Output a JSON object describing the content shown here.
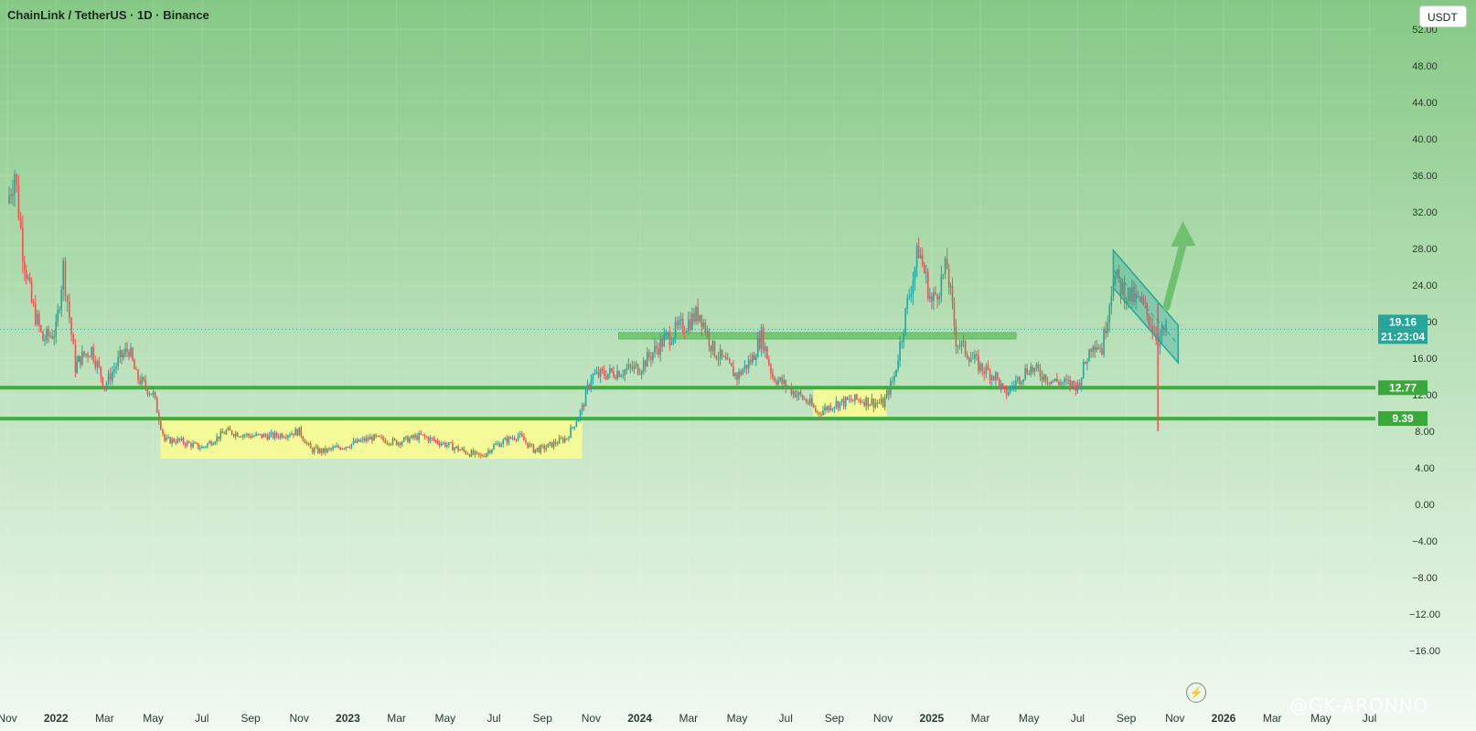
{
  "header": {
    "title": "ChainLink / TetherUS · 1D · Binance",
    "currency": "USDT"
  },
  "watermark": "@GK-ARONNO",
  "chart_data": {
    "type": "candlestick",
    "y_ticks": [
      "52.00",
      "48.00",
      "44.00",
      "40.00",
      "36.00",
      "32.00",
      "28.00",
      "24.00",
      "20.00",
      "16.00",
      "12.00",
      "8.00",
      "4.00",
      "0.00",
      "−4.00",
      "−8.00",
      "−12.00",
      "−16.00"
    ],
    "y_tick_values": [
      52,
      48,
      44,
      40,
      36,
      32,
      28,
      24,
      20,
      16,
      12,
      8,
      4,
      0,
      -4,
      -8,
      -12,
      -16
    ],
    "x_ticks": [
      "Nov",
      "2022",
      "Mar",
      "May",
      "Jul",
      "Sep",
      "Nov",
      "2023",
      "Mar",
      "May",
      "Jul",
      "Sep",
      "Nov",
      "2024",
      "Mar",
      "May",
      "Jul",
      "Sep",
      "Nov",
      "2025",
      "Mar",
      "May",
      "Jul",
      "Sep",
      "Nov",
      "2026",
      "Mar",
      "May",
      "Jul"
    ],
    "x_tick_dates": [
      "2021-11",
      "2022-01",
      "2022-03",
      "2022-05",
      "2022-07",
      "2022-09",
      "2022-11",
      "2023-01",
      "2023-03",
      "2023-05",
      "2023-07",
      "2023-09",
      "2023-11",
      "2024-01",
      "2024-03",
      "2024-05",
      "2024-07",
      "2024-09",
      "2024-11",
      "2025-01",
      "2025-03",
      "2025-05",
      "2025-07",
      "2025-09",
      "2025-11",
      "2026-01",
      "2026-03",
      "2026-05",
      "2026-07"
    ],
    "ylim": [
      -16,
      52
    ],
    "price_path": [
      [
        "2021-11",
        33
      ],
      [
        "2021-11-10",
        36.5
      ],
      [
        "2021-11-20",
        28
      ],
      [
        "2021-12",
        22
      ],
      [
        "2021-12-15",
        18
      ],
      [
        "2022-01",
        19
      ],
      [
        "2022-01-10",
        26
      ],
      [
        "2022-01-25",
        15
      ],
      [
        "2022-02",
        16
      ],
      [
        "2022-02-15",
        17
      ],
      [
        "2022-03",
        13
      ],
      [
        "2022-03-20",
        16
      ],
      [
        "2022-04",
        17
      ],
      [
        "2022-04-10",
        14
      ],
      [
        "2022-05",
        12
      ],
      [
        "2022-05-15",
        7
      ],
      [
        "2022-06",
        7
      ],
      [
        "2022-06-20",
        6.5
      ],
      [
        "2022-07",
        6.2
      ],
      [
        "2022-08",
        8
      ],
      [
        "2022-09",
        7.5
      ],
      [
        "2022-10",
        7.5
      ],
      [
        "2022-11",
        8
      ],
      [
        "2022-11-15",
        6
      ],
      [
        "2022-12",
        5.8
      ],
      [
        "2023-01",
        6.5
      ],
      [
        "2023-02",
        7.3
      ],
      [
        "2023-03",
        6.8
      ],
      [
        "2023-04",
        7.5
      ],
      [
        "2023-05",
        6.6
      ],
      [
        "2023-06",
        5.6
      ],
      [
        "2023-06-15",
        5.2
      ],
      [
        "2023-07",
        6.4
      ],
      [
        "2023-08",
        7.6
      ],
      [
        "2023-08-20",
        6
      ],
      [
        "2023-09",
        6.1
      ],
      [
        "2023-10",
        7.3
      ],
      [
        "2023-10-20",
        10.5
      ],
      [
        "2023-11",
        14
      ],
      [
        "2023-12",
        14.5
      ],
      [
        "2024-01",
        15
      ],
      [
        "2024-02",
        18
      ],
      [
        "2024-03",
        20
      ],
      [
        "2024-03-15",
        21
      ],
      [
        "2024-04",
        17
      ],
      [
        "2024-05",
        14
      ],
      [
        "2024-05-20",
        16
      ],
      [
        "2024-06",
        18.5
      ],
      [
        "2024-06-15",
        14
      ],
      [
        "2024-07",
        13
      ],
      [
        "2024-08",
        11
      ],
      [
        "2024-08-10",
        10
      ],
      [
        "2024-09",
        11
      ],
      [
        "2024-10",
        11.5
      ],
      [
        "2024-11",
        11
      ],
      [
        "2024-11-15",
        14
      ],
      [
        "2024-12",
        22
      ],
      [
        "2024-12-15",
        28
      ],
      [
        "2025-01",
        22
      ],
      [
        "2025-01-20",
        26
      ],
      [
        "2025-02",
        18
      ],
      [
        "2025-03",
        15
      ],
      [
        "2025-03-20",
        14
      ],
      [
        "2025-04",
        12
      ],
      [
        "2025-05",
        15
      ],
      [
        "2025-06",
        13.5
      ],
      [
        "2025-07",
        13
      ],
      [
        "2025-07-20",
        18
      ],
      [
        "2025-08",
        17
      ],
      [
        "2025-08-15",
        25
      ],
      [
        "2025-09",
        23
      ],
      [
        "2025-09-20",
        22
      ],
      [
        "2025-10",
        20
      ],
      [
        "2025-10-10",
        18
      ],
      [
        "2025-10-20",
        19.2
      ]
    ],
    "flash_wick": {
      "date": "2025-10-10",
      "low": 8
    },
    "annotations": {
      "support_lines": [
        12.77,
        9.39
      ],
      "current_price": 19.16,
      "countdown": "21:23:04",
      "labels": [
        "19.16",
        "21:23:04",
        "12.77",
        "9.39"
      ]
    },
    "colors": {
      "bg_top": "#86c986",
      "bg_bottom": "#f2faf2",
      "up": "#26a69a",
      "down": "#ef5350",
      "line": "#3fae3f",
      "yellow_box": "#ffff8c",
      "channel": "#26a69a",
      "arrow": "#6fc06f"
    }
  }
}
